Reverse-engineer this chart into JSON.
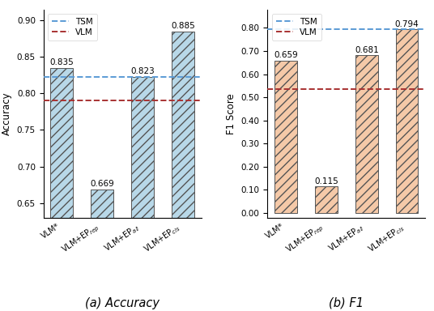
{
  "categories": [
    "VLM*",
    "VLM+EP$_{rep}$",
    "VLM+EP$_{all}$",
    "VLM+EP$_{cls}$"
  ],
  "accuracy_values": [
    0.835,
    0.669,
    0.823,
    0.885
  ],
  "f1_values": [
    0.659,
    0.115,
    0.681,
    0.794
  ],
  "tsm_accuracy": 0.823,
  "vlm_accuracy": 0.79,
  "tsm_f1": 0.794,
  "vlm_f1": 0.535,
  "accuracy_ylim": [
    0.63,
    0.915
  ],
  "accuracy_yticks": [
    0.65,
    0.7,
    0.75,
    0.8,
    0.85,
    0.9
  ],
  "f1_ylim": [
    -0.02,
    0.88
  ],
  "f1_yticks": [
    0.0,
    0.1,
    0.2,
    0.3,
    0.4,
    0.5,
    0.6,
    0.7,
    0.8
  ],
  "bar_color_accuracy": "#b8d8e8",
  "bar_color_f1": "#f5c9a8",
  "tsm_line_color": "#5b9bd5",
  "vlm_line_color": "#a83232",
  "ylabel_accuracy": "Accuracy",
  "ylabel_f1": "F1 Score",
  "subtitle_a": "(a) Accuracy",
  "subtitle_b": "(b) F1",
  "legend_tsm": "TSM",
  "legend_vlm": "VLM"
}
